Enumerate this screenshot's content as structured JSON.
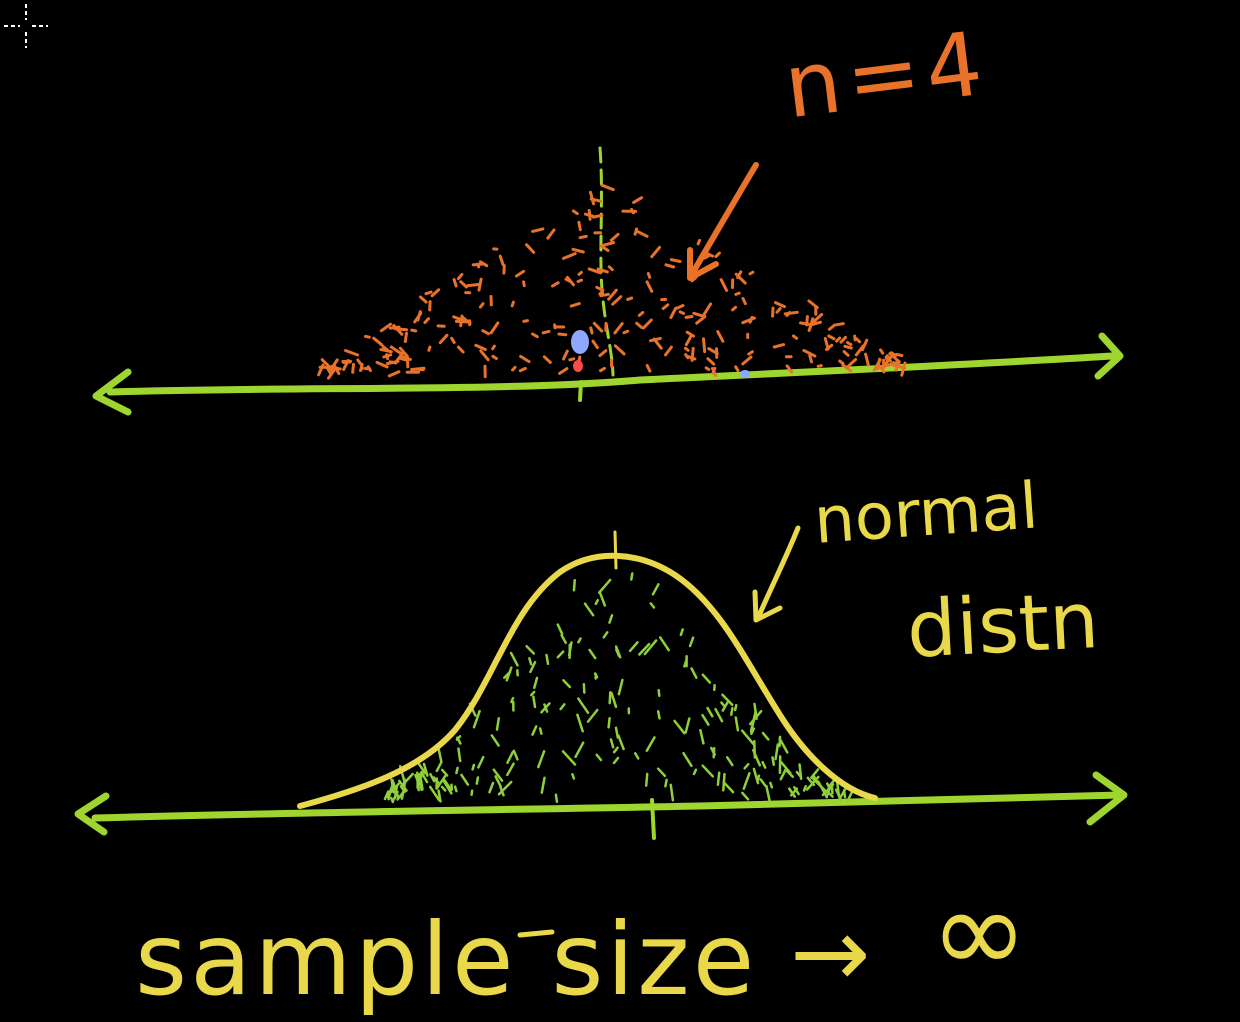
{
  "colors": {
    "background": "#000000",
    "axis": "#9ed62f",
    "orange": "#e8722a",
    "yellow": "#e8d84a",
    "green_fill": "#8fcf3a",
    "blue_dot": "#8fa8ff",
    "red_dot": "#ff4a4a"
  },
  "annotations": {
    "sample_size_label": "n=4",
    "normal_label": "normal",
    "dist_label": "distn",
    "bottom_text": "sample size",
    "arrow_text": "→",
    "infinity_text": "∞"
  },
  "icons": {
    "cursor": "crosshair-cursor-icon"
  }
}
